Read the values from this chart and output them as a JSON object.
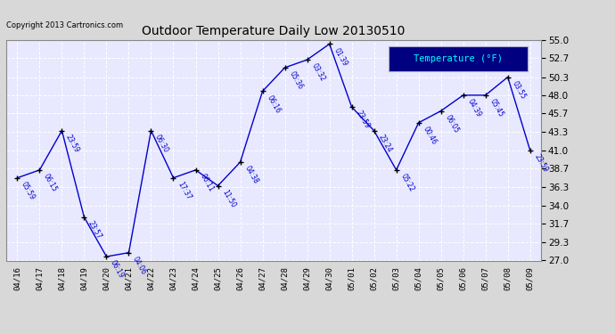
{
  "title": "Outdoor Temperature Daily Low 20130510",
  "copyright": "Copyright 2013 Cartronics.com",
  "legend_label": "Temperature (°F)",
  "ylim": [
    27.0,
    55.0
  ],
  "yticks": [
    27.0,
    29.3,
    31.7,
    34.0,
    36.3,
    38.7,
    41.0,
    43.3,
    45.7,
    48.0,
    50.3,
    52.7,
    55.0
  ],
  "dates": [
    "04/16",
    "04/17",
    "04/18",
    "04/19",
    "04/20",
    "04/21",
    "04/22",
    "04/23",
    "04/24",
    "04/25",
    "04/26",
    "04/27",
    "04/28",
    "04/29",
    "04/30",
    "05/01",
    "05/02",
    "05/03",
    "05/04",
    "05/05",
    "05/06",
    "05/07",
    "05/08",
    "05/09"
  ],
  "temperatures": [
    37.5,
    38.5,
    43.5,
    32.5,
    27.5,
    28.0,
    43.5,
    37.5,
    38.5,
    36.5,
    39.5,
    48.5,
    51.5,
    52.5,
    54.5,
    46.5,
    43.5,
    38.5,
    44.5,
    46.0,
    48.0,
    48.0,
    50.3,
    41.0
  ],
  "time_labels": [
    "05:59",
    "06:15",
    "23:59",
    "23:57",
    "06:19",
    "04:06",
    "06:30",
    "17:37",
    "06:11",
    "11:50",
    "04:38",
    "06:16",
    "05:36",
    "03:32",
    "01:39",
    "23:59",
    "23:24",
    "05:22",
    "00:46",
    "06:05",
    "04:39",
    "05:45",
    "03:55",
    "23:59"
  ],
  "line_color": "#0000cc",
  "marker_color": "#000000",
  "background_color": "#d8d8d8",
  "plot_bg_color": "#e8e8ff",
  "grid_color": "#ffffff",
  "title_color": "#000000",
  "label_color": "#0000cc",
  "legend_bg": "#000080",
  "legend_text_color": "#00ffff"
}
